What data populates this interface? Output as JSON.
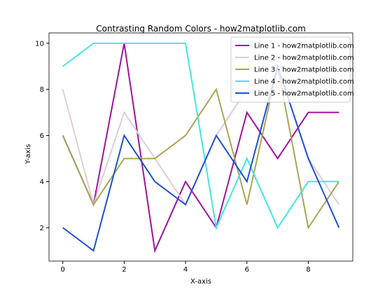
{
  "chart_data": {
    "type": "line",
    "title": "Contrasting Random Colors - how2matplotlib.com",
    "x_label": "X-axis",
    "y_label": "Y-axis",
    "x": [
      0,
      1,
      2,
      3,
      4,
      5,
      6,
      7,
      8,
      9
    ],
    "series": [
      {
        "name": "Line 1 - how2matplotlib.com",
        "color": "#a0129e",
        "values": [
          6,
          3,
          10,
          1,
          4,
          2,
          7,
          5,
          7,
          7
        ]
      },
      {
        "name": "Line 2 - how2matplotlib.com",
        "color": "#ddcdd6",
        "values": [
          8,
          3,
          7,
          5,
          3,
          6,
          8,
          9,
          5,
          3
        ]
      },
      {
        "name": "Line 3 - how2matplotlib.com",
        "color": "#aaa456",
        "values": [
          6,
          3,
          5,
          5,
          6,
          8,
          3,
          9,
          2,
          4
        ]
      },
      {
        "name": "Line 4 - how2matplotlib.com",
        "color": "#40e8e0",
        "values": [
          9,
          10,
          10,
          10,
          10,
          2,
          5,
          2,
          4,
          4
        ]
      },
      {
        "name": "Line 5 - how2matplotlib.com",
        "color": "#1f4fd6",
        "values": [
          2,
          1,
          6,
          4,
          3,
          6,
          4,
          9,
          5,
          2
        ]
      }
    ],
    "xlim": [
      -0.45,
      9.45
    ],
    "ylim": [
      0.55,
      10.45
    ],
    "xticks": [
      0,
      2,
      4,
      6,
      8
    ],
    "yticks": [
      2,
      4,
      6,
      8,
      10
    ],
    "legend": "upper right"
  }
}
